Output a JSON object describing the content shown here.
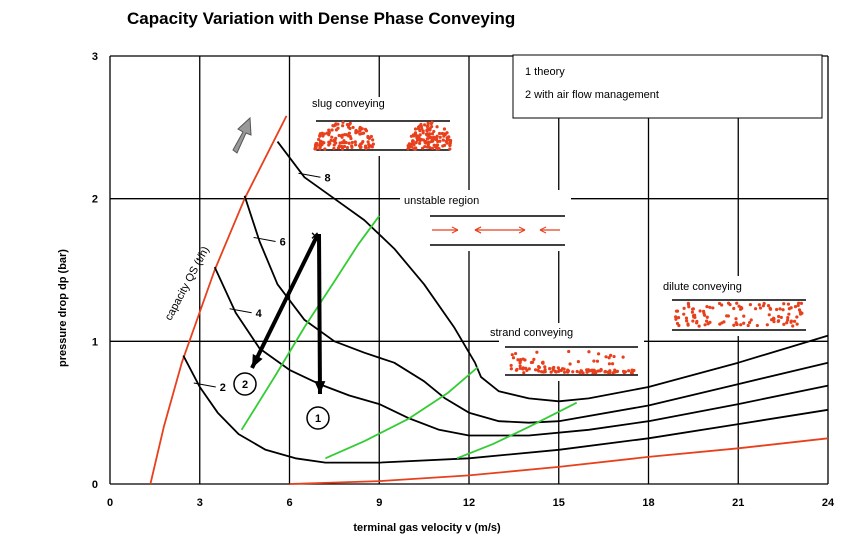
{
  "chart_data": {
    "type": "line",
    "title": "Capacity Variation with Dense Phase Conveying",
    "xlabel": "terminal gas velocity  v (m/s)",
    "ylabel": "pressure drop dp (bar)",
    "xlim": [
      0,
      24
    ],
    "ylim": [
      0,
      3
    ],
    "xticks": [
      0,
      3,
      6,
      9,
      12,
      15,
      18,
      21,
      24
    ],
    "yticks": [
      0,
      1,
      2,
      3
    ],
    "grid": true,
    "capacity_label": "capacity QS (t/h)",
    "legend_text": [
      "1 theory",
      "2 with air flow management"
    ],
    "markers": [
      "1",
      "2"
    ],
    "annotations": [
      "slug conveying",
      "unstable region",
      "strand conveying",
      "dilute conveying"
    ],
    "series": [
      {
        "color": "#e8401c",
        "x": [
          1.35,
          1.8,
          2.4,
          3.5,
          4.5,
          5.9
        ],
        "values": [
          0,
          0.4,
          0.85,
          1.5,
          2.0,
          2.58
        ]
      },
      {
        "color": "#e8401c",
        "x": [
          6,
          9,
          12,
          15,
          18,
          21,
          24
        ],
        "values": [
          0,
          0.02,
          0.06,
          0.12,
          0.19,
          0.25,
          0.32
        ]
      },
      {
        "name": "2",
        "color": "#000000",
        "x": [
          2.45,
          3.0,
          3.6,
          4.3,
          5.2,
          6.2,
          7.2,
          9,
          12,
          15,
          18,
          21,
          24
        ],
        "values": [
          0.9,
          0.68,
          0.5,
          0.35,
          0.24,
          0.18,
          0.15,
          0.15,
          0.18,
          0.24,
          0.32,
          0.42,
          0.52
        ]
      },
      {
        "name": "4",
        "color": "#000000",
        "x": [
          3.5,
          4.2,
          5,
          6,
          7,
          8,
          9,
          10,
          11,
          12,
          14,
          16,
          18,
          21,
          24
        ],
        "values": [
          1.52,
          1.2,
          0.95,
          0.8,
          0.7,
          0.62,
          0.56,
          0.46,
          0.38,
          0.34,
          0.34,
          0.38,
          0.44,
          0.56,
          0.69
        ]
      },
      {
        "name": "6",
        "color": "#000000",
        "x": [
          4.5,
          5,
          5.6,
          6.5,
          7.5,
          8.5,
          9.5,
          10.5,
          11.2,
          12,
          13,
          14,
          15,
          18,
          21,
          24
        ],
        "values": [
          2.02,
          1.7,
          1.4,
          1.15,
          1.0,
          0.92,
          0.85,
          0.72,
          0.6,
          0.5,
          0.44,
          0.43,
          0.44,
          0.55,
          0.7,
          0.85
        ]
      },
      {
        "name": "8",
        "color": "#000000",
        "x": [
          5.6,
          6.5,
          7.5,
          8.5,
          9.5,
          10.5,
          11.5,
          12.2,
          12.4,
          13,
          14,
          15,
          16,
          18,
          21,
          24
        ],
        "values": [
          2.4,
          2.15,
          2.0,
          1.85,
          1.65,
          1.4,
          1.1,
          0.85,
          0.75,
          0.65,
          0.6,
          0.58,
          0.6,
          0.68,
          0.85,
          1.04
        ]
      },
      {
        "color": "#33cc33",
        "x": [
          4.4,
          5.5,
          6.5,
          7.5,
          8.3,
          9.0
        ],
        "values": [
          0.38,
          0.75,
          1.1,
          1.42,
          1.68,
          1.88
        ]
      },
      {
        "color": "#33cc33",
        "x": [
          7.2,
          8.5,
          10,
          11.3,
          12.3
        ],
        "values": [
          0.18,
          0.3,
          0.46,
          0.64,
          0.82
        ]
      },
      {
        "color": "#33cc33",
        "x": [
          11.6,
          12.8,
          14,
          15.6
        ],
        "values": [
          0.18,
          0.28,
          0.4,
          0.57
        ]
      }
    ]
  }
}
